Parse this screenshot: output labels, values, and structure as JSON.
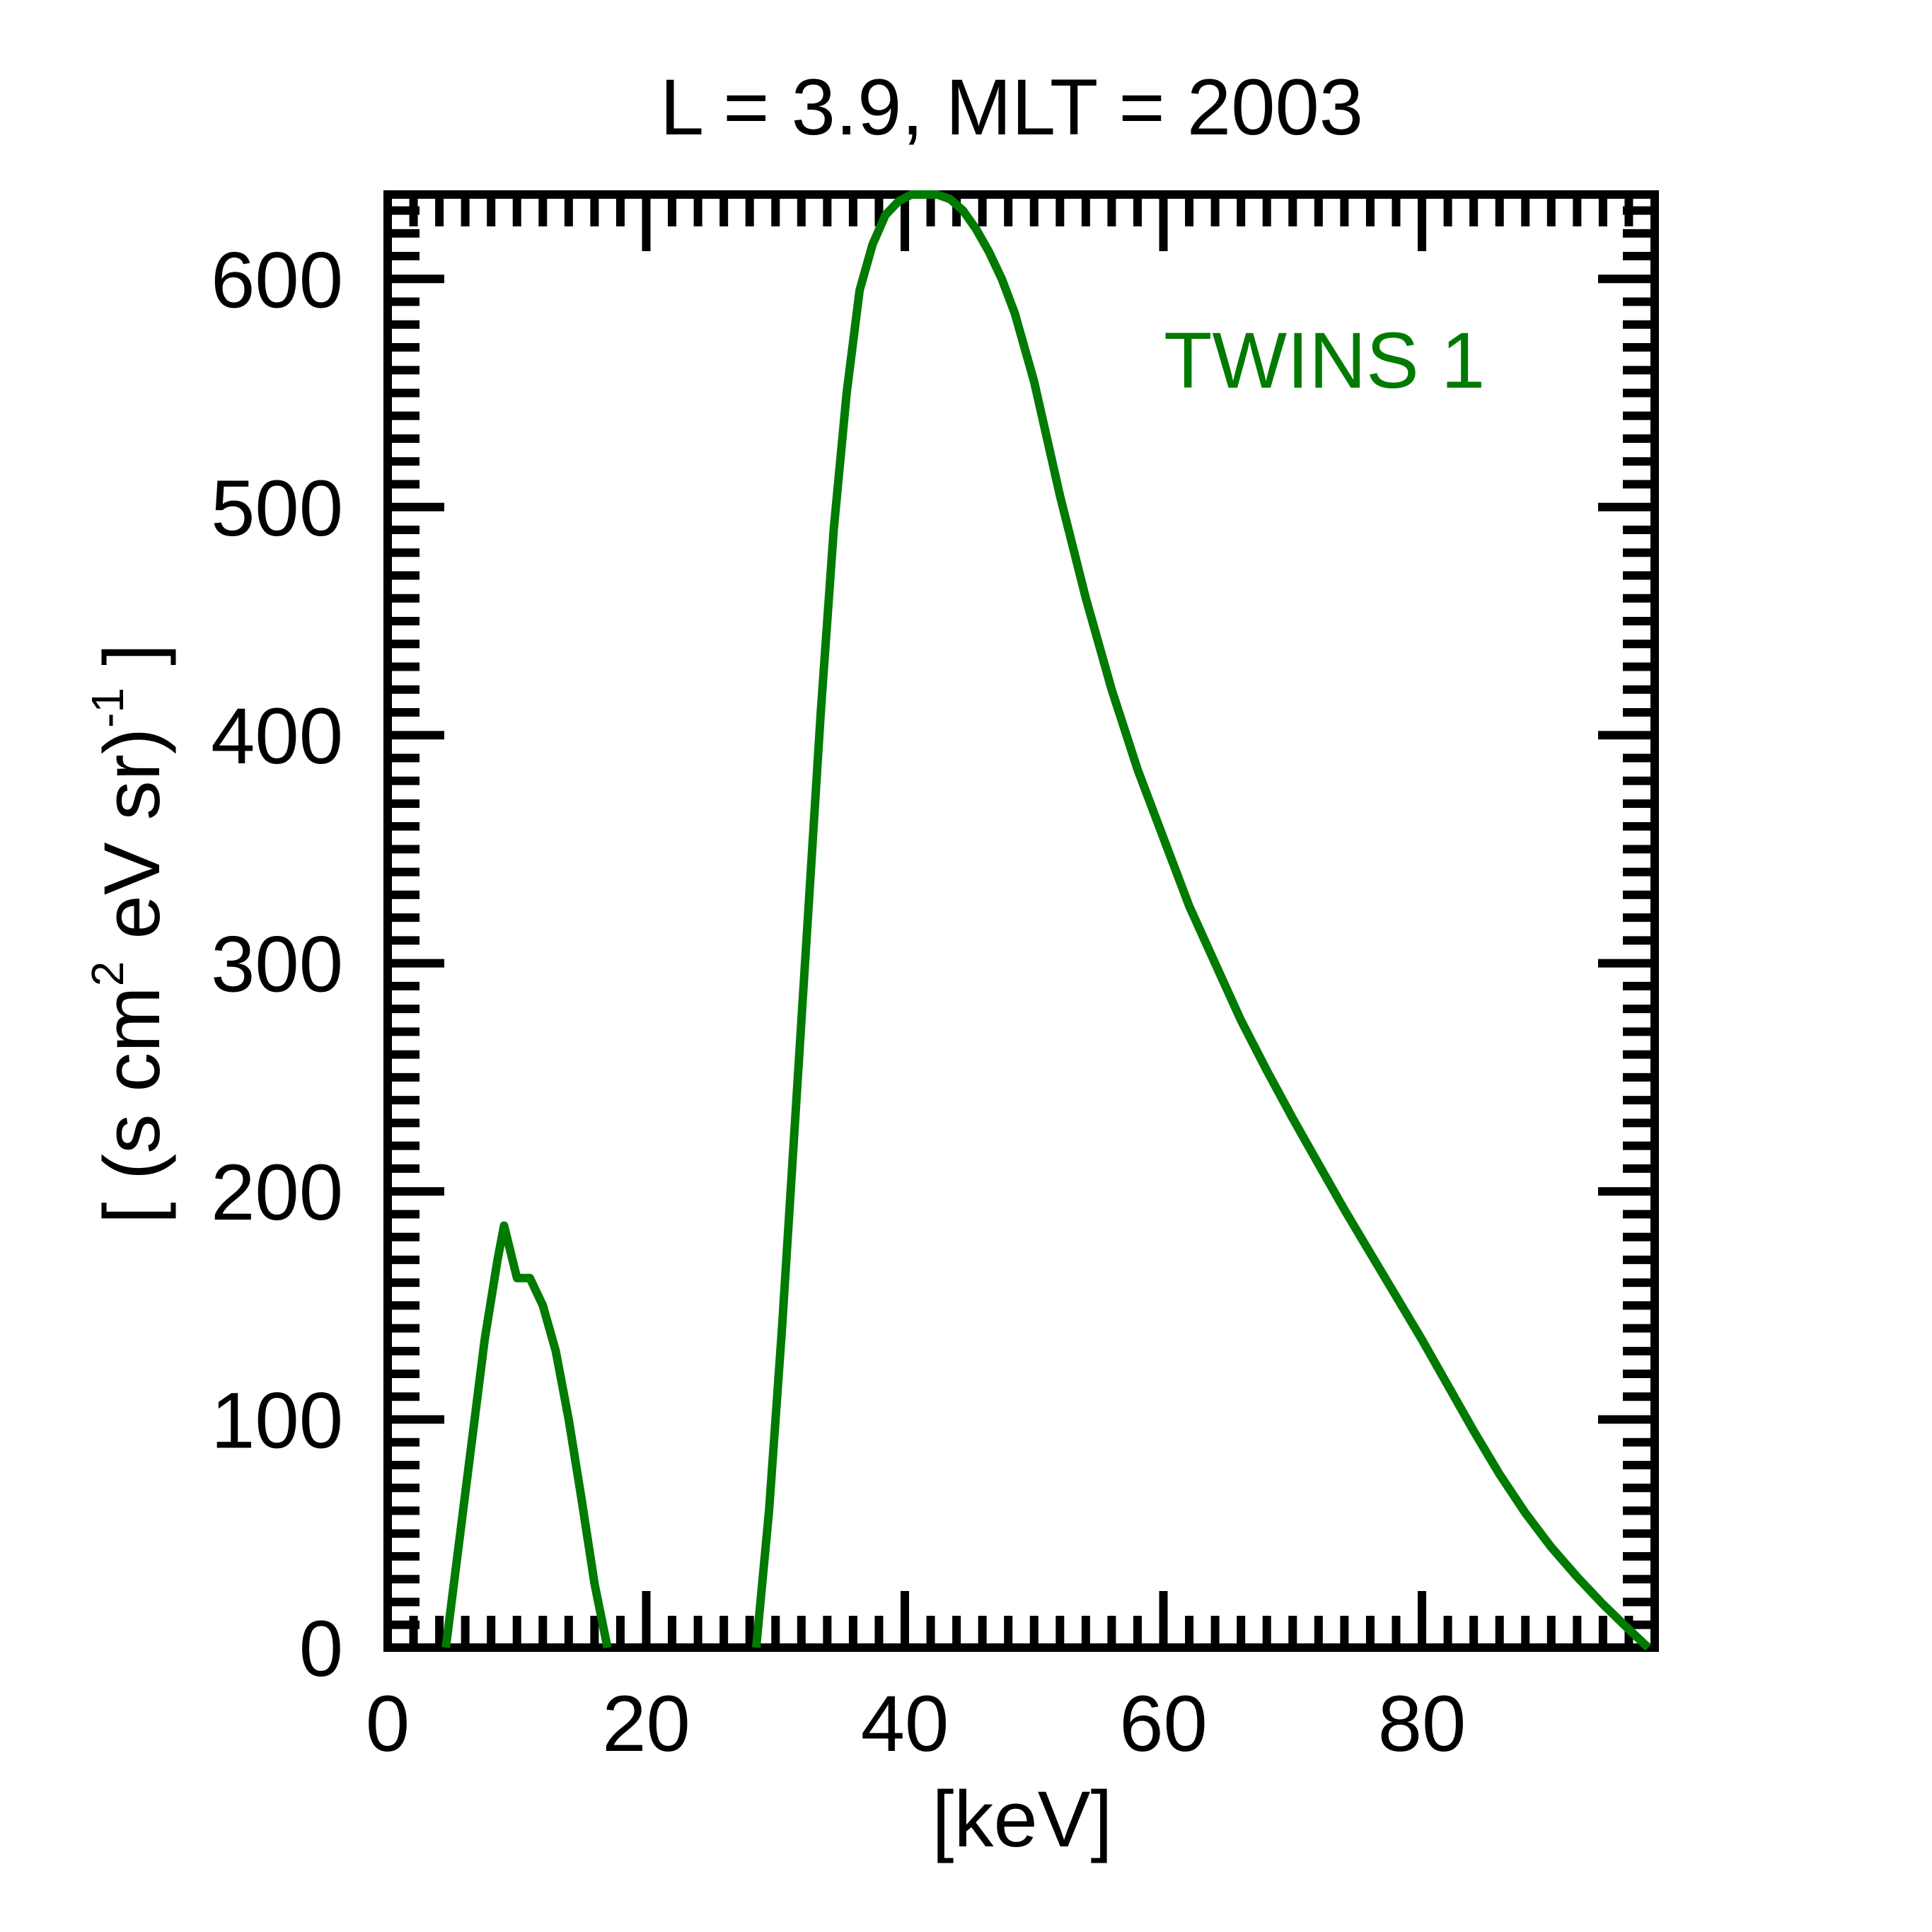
{
  "chart_data": {
    "type": "line",
    "title": "L =  3.9, MLT = 2003",
    "xlabel": "[keV]",
    "ylabel": {
      "prefix": "[ (s cm",
      "sup1": "2",
      "middle": " eV sr)",
      "sup2": "-1",
      "suffix": " ]"
    },
    "xlim": [
      0,
      98
    ],
    "ylim": [
      0,
      637
    ],
    "xticks": [
      0,
      20,
      40,
      60,
      80
    ],
    "xtick_labels": [
      "0",
      "20",
      "40",
      "60",
      "80"
    ],
    "yticks": [
      0,
      100,
      200,
      300,
      400,
      500,
      600
    ],
    "ytick_labels": [
      "0",
      "100",
      "200",
      "300",
      "400",
      "500",
      "600"
    ],
    "grid": false,
    "legend_position": "top-right",
    "series": [
      {
        "name": "TWINS 1",
        "color": "#007a00",
        "x": [
          4.5,
          5.5,
          6.5,
          7.5,
          8.5,
          9.0,
          10.0,
          11.0,
          12.0,
          13.0,
          14.0,
          15.0,
          16.0,
          17.0,
          17.5,
          28.5,
          29.5,
          30.5,
          31.5,
          32.5,
          33.5,
          34.5,
          35.5,
          36.5,
          37.5,
          38.5,
          39.5,
          40.5,
          41.5,
          42.5,
          43.5,
          44.5,
          45.5,
          46.5,
          47.5,
          48.5,
          50,
          52,
          54,
          56,
          58,
          60,
          62,
          64,
          66,
          68,
          70,
          72,
          74,
          76,
          78,
          80,
          82,
          84,
          86,
          88,
          90,
          92,
          94,
          96,
          97.5
        ],
        "y": [
          0,
          45,
          90,
          135,
          170,
          185,
          162,
          162,
          150,
          130,
          100,
          65,
          28,
          0,
          0,
          0,
          60,
          140,
          230,
          320,
          410,
          490,
          550,
          595,
          615,
          628,
          634,
          637,
          637,
          637,
          635,
          630,
          622,
          612,
          600,
          585,
          555,
          505,
          460,
          420,
          385,
          355,
          325,
          300,
          275,
          253,
          232,
          212,
          192,
          173,
          154,
          135,
          115,
          95,
          76,
          59,
          44,
          31,
          19,
          8,
          0
        ]
      }
    ]
  }
}
